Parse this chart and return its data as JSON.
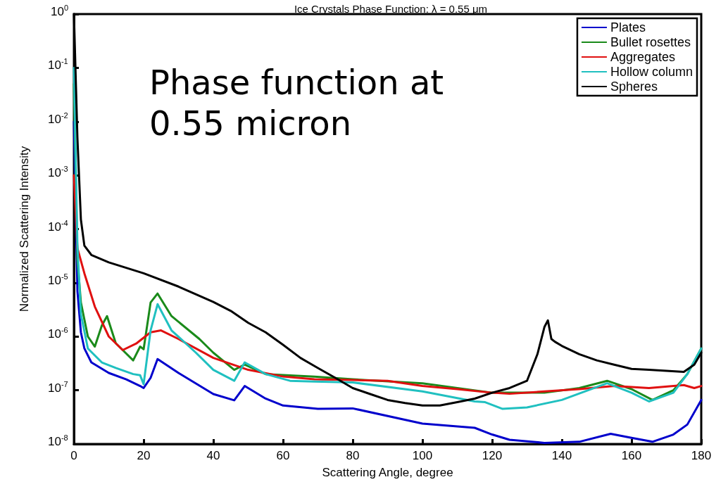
{
  "chart_data": {
    "type": "line",
    "title": "Ice Crystals Phase Function: λ = 0.55 μm",
    "xlabel": "Scattering Angle, degree",
    "ylabel": "Normalized Scattering Intensity",
    "annotations": [
      "Phase function at\n0.55 micron"
    ],
    "log": "y",
    "xlim": [
      0,
      180
    ],
    "xticks": [
      0,
      20,
      40,
      60,
      80,
      100,
      120,
      140,
      160,
      180
    ],
    "ylim": [
      1e-08,
      1
    ],
    "yticks": [
      {
        "value": 1e-08,
        "label": "10$^{-8}$"
      },
      {
        "value": 1e-07,
        "label": "10$^{-7}$"
      },
      {
        "value": 1e-06,
        "label": "10$^{-6}$"
      },
      {
        "value": 1e-05,
        "label": "10$^{-5}$"
      },
      {
        "value": 0.0001,
        "label": "10$^{-4}$"
      },
      {
        "value": 0.001,
        "label": "10$^{-3}$"
      },
      {
        "value": 0.01,
        "label": "10$^{-2}$"
      },
      {
        "value": 0.1,
        "label": "10$^{-1}$"
      },
      {
        "value": 1,
        "label": "10$^{0}$"
      }
    ],
    "grid": false,
    "legend": "top right",
    "marker": "none",
    "line_style": "solid",
    "series": [
      {
        "name": "Plates",
        "color": "#0000cc",
        "x": [
          0,
          1,
          2,
          3,
          5,
          10,
          15,
          19,
          20,
          22,
          24,
          30,
          40,
          46,
          49,
          55,
          60,
          70,
          80,
          100,
          115,
          120,
          125,
          135,
          145,
          154,
          160,
          166,
          172,
          176,
          180
        ],
        "values": [
          0.01,
          7e-06,
          1.2e-06,
          6e-07,
          3.3e-07,
          2.1e-07,
          1.6e-07,
          1.2e-07,
          1.1e-07,
          1.7e-07,
          3.8e-07,
          2.1e-07,
          8.5e-08,
          6.5e-08,
          1.2e-07,
          7e-08,
          5.2e-08,
          4.5e-08,
          4.6e-08,
          2.4e-08,
          2e-08,
          1.5e-08,
          1.2e-08,
          1.05e-08,
          1.1e-08,
          1.55e-08,
          1.3e-08,
          1.1e-08,
          1.5e-08,
          2.3e-08,
          6.6e-08
        ]
      },
      {
        "name": "Bullet rosettes",
        "color": "#1a8a1a",
        "x": [
          0,
          1,
          2,
          4,
          6,
          8,
          9.5,
          12,
          17,
          19,
          20,
          22,
          24,
          28,
          36,
          40,
          46,
          49,
          55,
          69,
          80,
          100,
          120,
          135,
          145,
          153,
          160,
          166,
          172,
          176,
          180
        ],
        "values": [
          0.05,
          2.7e-05,
          4.3e-06,
          1e-06,
          6.5e-07,
          1.6e-06,
          2.4e-06,
          7.5e-07,
          3.6e-07,
          6.5e-07,
          5.8e-07,
          4.3e-06,
          6.3e-06,
          2.4e-06,
          9e-07,
          5e-07,
          2.4e-07,
          3e-07,
          2e-07,
          1.8e-07,
          1.6e-07,
          1.35e-07,
          9e-08,
          9e-08,
          1.1e-07,
          1.5e-07,
          1.05e-07,
          6.6e-08,
          1e-07,
          2e-07,
          6e-07
        ]
      },
      {
        "name": "Aggregates",
        "color": "#e01010",
        "x": [
          0,
          1,
          3,
          6,
          10,
          14,
          18,
          22,
          25,
          30,
          40,
          50,
          60,
          69,
          80,
          90,
          100,
          110,
          120,
          125,
          135,
          145,
          155,
          165,
          175,
          178,
          180
        ],
        "values": [
          0.001,
          4.4e-05,
          1.5e-05,
          3.6e-06,
          1e-06,
          5.6e-07,
          7.5e-07,
          1.2e-06,
          1.3e-06,
          9e-07,
          4e-07,
          2.4e-07,
          1.8e-07,
          1.6e-07,
          1.55e-07,
          1.5e-07,
          1.2e-07,
          1.05e-07,
          9e-08,
          8.6e-08,
          9.5e-08,
          1.05e-07,
          1.2e-07,
          1.1e-07,
          1.25e-07,
          1.1e-07,
          1.2e-07
        ]
      },
      {
        "name": "Hollow column",
        "color": "#20c0c0",
        "x": [
          0,
          1,
          2,
          4,
          8,
          12,
          17,
          19,
          20,
          22,
          24,
          28,
          35,
          40,
          46,
          49,
          55,
          62,
          69,
          80,
          100,
          115,
          118,
          123,
          130,
          140,
          153,
          160,
          165,
          172,
          176,
          180
        ],
        "values": [
          0.1,
          5e-05,
          2.6e-06,
          6e-07,
          3.3e-07,
          2.6e-07,
          2e-07,
          1.9e-07,
          1.3e-07,
          1.3e-06,
          4e-06,
          1.3e-06,
          5e-07,
          2.4e-07,
          1.5e-07,
          3.3e-07,
          2e-07,
          1.5e-07,
          1.45e-07,
          1.4e-07,
          9.5e-08,
          6.2e-08,
          6e-08,
          4.5e-08,
          4.8e-08,
          6.6e-08,
          1.35e-07,
          9e-08,
          6.2e-08,
          9e-08,
          2e-07,
          6e-07
        ]
      },
      {
        "name": "Spheres",
        "color": "#000000",
        "x": [
          0,
          1,
          2,
          3,
          5,
          10,
          20,
          30,
          40,
          45,
          50,
          55,
          60,
          65,
          70,
          75,
          80,
          85,
          90,
          95,
          100,
          105,
          110,
          115,
          120,
          125,
          130,
          133,
          135,
          136,
          137,
          138,
          140,
          145,
          150,
          155,
          160,
          165,
          170,
          175,
          178,
          180
        ],
        "values": [
          1,
          0.005,
          0.00015,
          4.9e-05,
          3.3e-05,
          2.4e-05,
          1.5e-05,
          8.5e-06,
          4.4e-06,
          3e-06,
          1.8e-06,
          1.2e-06,
          7e-07,
          4e-07,
          2.6e-07,
          1.7e-07,
          1.1e-07,
          8.5e-08,
          6.6e-08,
          5.8e-08,
          5.2e-08,
          5.2e-08,
          6e-08,
          7e-08,
          9e-08,
          1.1e-07,
          1.5e-07,
          4.7e-07,
          1.5e-06,
          2e-06,
          9e-07,
          8e-07,
          6.7e-07,
          4.7e-07,
          3.6e-07,
          3e-07,
          2.5e-07,
          2.4e-07,
          2.3e-07,
          2.2e-07,
          3e-07,
          5e-07
        ]
      }
    ]
  }
}
